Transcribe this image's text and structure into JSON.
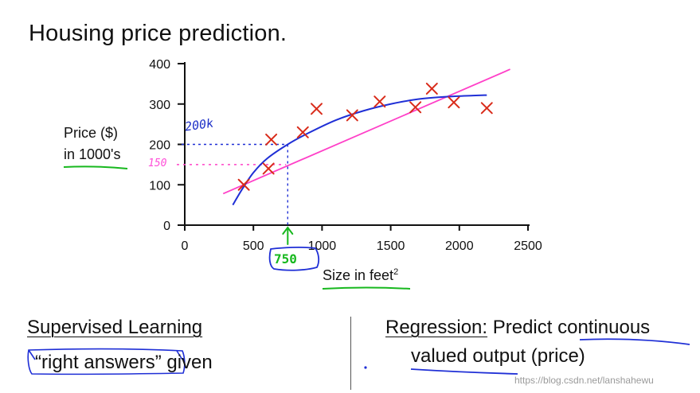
{
  "title": "Housing price prediction.",
  "chart_data": {
    "type": "scatter",
    "xlim": [
      0,
      2500
    ],
    "ylim": [
      0,
      400
    ],
    "x_ticks": [
      0,
      500,
      1000,
      1500,
      2000,
      2500
    ],
    "y_ticks": [
      0,
      100,
      200,
      300,
      400
    ],
    "ylabel": [
      "Price ($)",
      "in 1000's"
    ],
    "xlabel": "Size in feet",
    "xlabel_superscript": "2",
    "grid": false,
    "legend": "none",
    "points": [
      {
        "x": 430,
        "y": 100
      },
      {
        "x": 610,
        "y": 140
      },
      {
        "x": 630,
        "y": 212
      },
      {
        "x": 860,
        "y": 230
      },
      {
        "x": 960,
        "y": 288
      },
      {
        "x": 1220,
        "y": 272
      },
      {
        "x": 1420,
        "y": 306
      },
      {
        "x": 1680,
        "y": 292
      },
      {
        "x": 1800,
        "y": 338
      },
      {
        "x": 1960,
        "y": 304
      },
      {
        "x": 2200,
        "y": 290
      }
    ],
    "straight_fit": {
      "color": "#ff40c8",
      "points": [
        [
          280,
          78
        ],
        [
          2370,
          386
        ]
      ]
    },
    "curve_fit": {
      "color": "#1f2fd6",
      "points": [
        [
          350,
          50
        ],
        [
          420,
          90
        ],
        [
          500,
          130
        ],
        [
          600,
          165
        ],
        [
          750,
          200
        ],
        [
          900,
          228
        ],
        [
          1100,
          260
        ],
        [
          1300,
          283
        ],
        [
          1500,
          300
        ],
        [
          1700,
          312
        ],
        [
          1900,
          318
        ],
        [
          2100,
          321
        ],
        [
          2200,
          322
        ]
      ]
    },
    "marker_color": "#d92b1a",
    "annotations": {
      "label_200k": "200k",
      "label_150": "150",
      "label_750": "750",
      "query_x": 750,
      "blue_level": 200,
      "pink_level": 150
    }
  },
  "bottom": {
    "left_heading": "Supervised Learning",
    "left_sub": "“right answers” given",
    "right_heading_a": "Regression:",
    "right_heading_b": " Predict continuous",
    "right_sub": "valued output (price)"
  },
  "watermark": "https://blog.csdn.net/lanshahewu"
}
